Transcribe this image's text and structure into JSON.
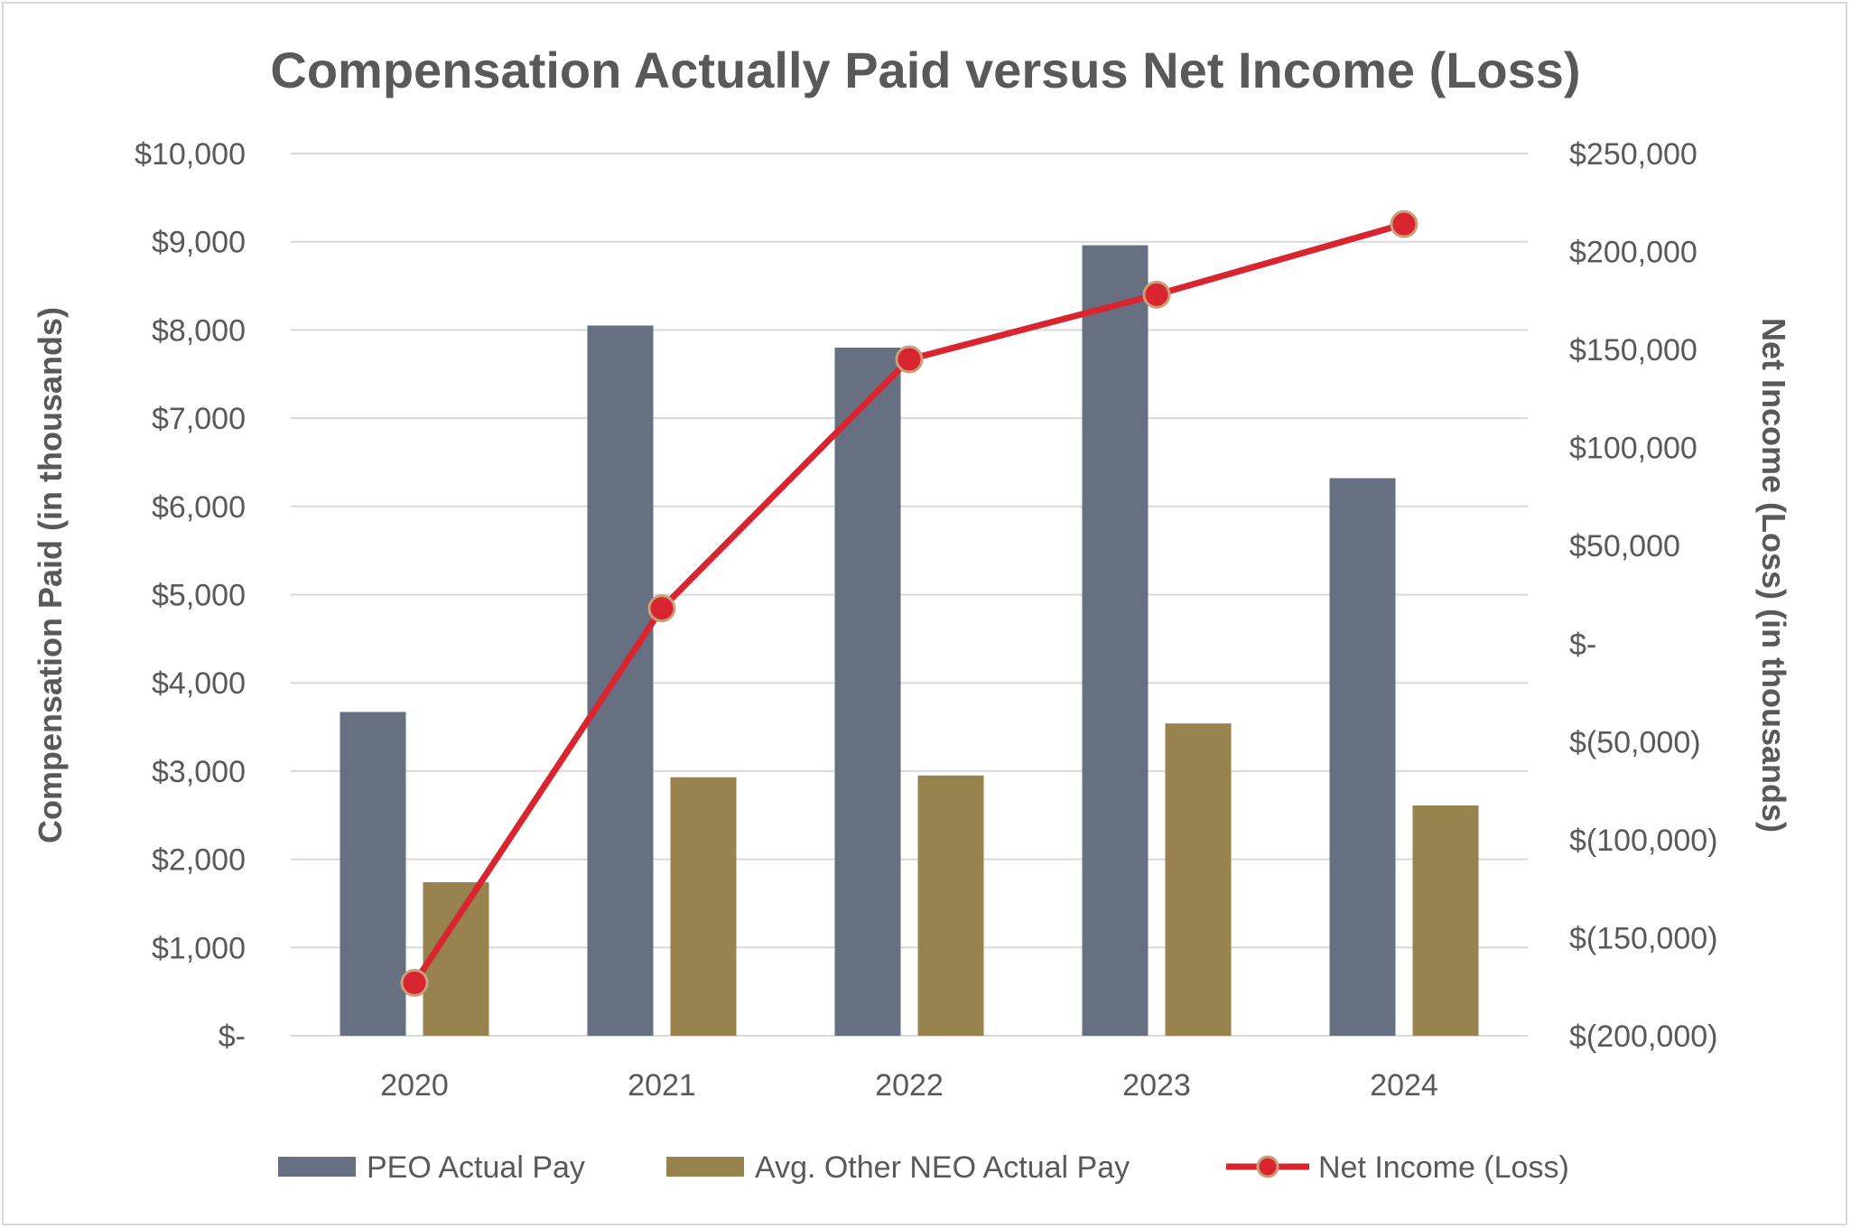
{
  "chart_data": {
    "type": "bar",
    "title": "Compensation Actually Paid versus Net Income (Loss)",
    "categories": [
      "2020",
      "2021",
      "2022",
      "2023",
      "2024"
    ],
    "y_left": {
      "label": "Compensation Paid (in thousands)",
      "lim": [
        0,
        10000
      ],
      "ticks": [
        "$-",
        "$1,000",
        "$2,000",
        "$3,000",
        "$4,000",
        "$5,000",
        "$6,000",
        "$7,000",
        "$8,000",
        "$9,000",
        "$10,000"
      ]
    },
    "y_right": {
      "label": "Net Income (Loss) (in thousands)",
      "lim": [
        -200000,
        250000
      ],
      "ticks": [
        "$(200,000)",
        "$(150,000)",
        "$(100,000)",
        "$(50,000)",
        "$-",
        "$50,000",
        "$100,000",
        "$150,000",
        "$200,000",
        "$250,000"
      ]
    },
    "series": [
      {
        "name": "PEO Actual Pay",
        "type": "bar",
        "axis": "left",
        "color": "#667080",
        "values": [
          3670,
          8050,
          7800,
          8960,
          6320
        ]
      },
      {
        "name": "Avg. Other NEO Actual Pay",
        "type": "bar",
        "axis": "left",
        "color": "#98834e",
        "values": [
          1740,
          2930,
          2950,
          3540,
          2610
        ]
      },
      {
        "name": "Net Income (Loss)",
        "type": "line",
        "axis": "right",
        "color": "#d9252f",
        "values": [
          -173000,
          18000,
          145000,
          178000,
          214000
        ]
      }
    ],
    "grid": true,
    "legend_position": "bottom"
  }
}
